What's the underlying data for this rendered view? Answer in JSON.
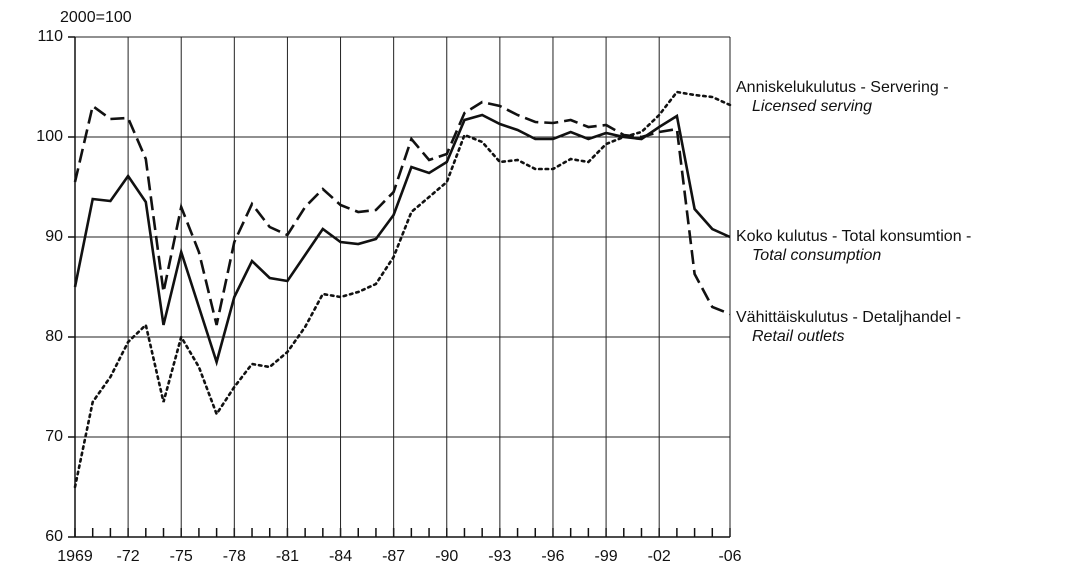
{
  "chart_data": {
    "type": "line",
    "unit_label": "2000=100",
    "categories": [
      "1969",
      null,
      null,
      "-72",
      null,
      null,
      "-75",
      null,
      null,
      "-78",
      null,
      null,
      "-81",
      null,
      null,
      "-84",
      null,
      null,
      "-87",
      null,
      null,
      "-90",
      null,
      null,
      "-93",
      null,
      null,
      "-96",
      null,
      null,
      "-99",
      null,
      null,
      "-02",
      null,
      null,
      null,
      "-06"
    ],
    "ylim": [
      60,
      110
    ],
    "yticks": [
      60,
      70,
      80,
      90,
      100,
      110
    ],
    "grid": true,
    "series": [
      {
        "name": "Anniskelukulutus - Servering -",
        "subname": "Licensed serving",
        "color": "#111111",
        "dash": "dashed",
        "values": [
          95.5,
          103.1,
          101.8,
          101.9,
          97.8,
          84.5,
          93,
          88.5,
          81.2,
          89.5,
          93.3,
          91,
          90.2,
          93,
          94.8,
          93.2,
          92.5,
          92.7,
          94.5,
          99.8,
          97.7,
          98.3,
          102.4,
          103.5,
          103.1,
          102.2,
          101.5,
          101.4,
          101.7,
          101,
          101.2,
          100.2,
          100,
          100.5,
          100.8,
          86.3,
          83,
          82.3
        ]
      },
      {
        "name": "Koko kulutus - Total konsumtion -",
        "subname": "Total consumption",
        "color": "#111111",
        "dash": "solid",
        "values": [
          85,
          93.8,
          93.6,
          96.1,
          93.5,
          81.2,
          88.5,
          83,
          77.5,
          84,
          87.6,
          85.9,
          85.6,
          88.2,
          90.8,
          89.5,
          89.3,
          89.8,
          92.2,
          97,
          96.4,
          97.5,
          101.7,
          102.2,
          101.3,
          100.7,
          99.8,
          99.8,
          100.5,
          99.8,
          100.4,
          100,
          99.8,
          101,
          102.1,
          92.8,
          90.8,
          90
        ]
      },
      {
        "name": "Vähittäiskulutus - Detaljhandel -",
        "subname": "Retail outlets",
        "color": "#111111",
        "dash": "dotted",
        "values": [
          65,
          73.5,
          76,
          79.5,
          81.2,
          73.5,
          80,
          77,
          72.3,
          75,
          77.3,
          77,
          78.5,
          81,
          84.3,
          84,
          84.5,
          85.3,
          88,
          92.5,
          94,
          95.5,
          100.2,
          99.5,
          97.5,
          97.7,
          96.8,
          96.8,
          97.8,
          97.5,
          99.3,
          100,
          100.5,
          102.2,
          104.5,
          104.2,
          104,
          103.2
        ]
      }
    ]
  }
}
